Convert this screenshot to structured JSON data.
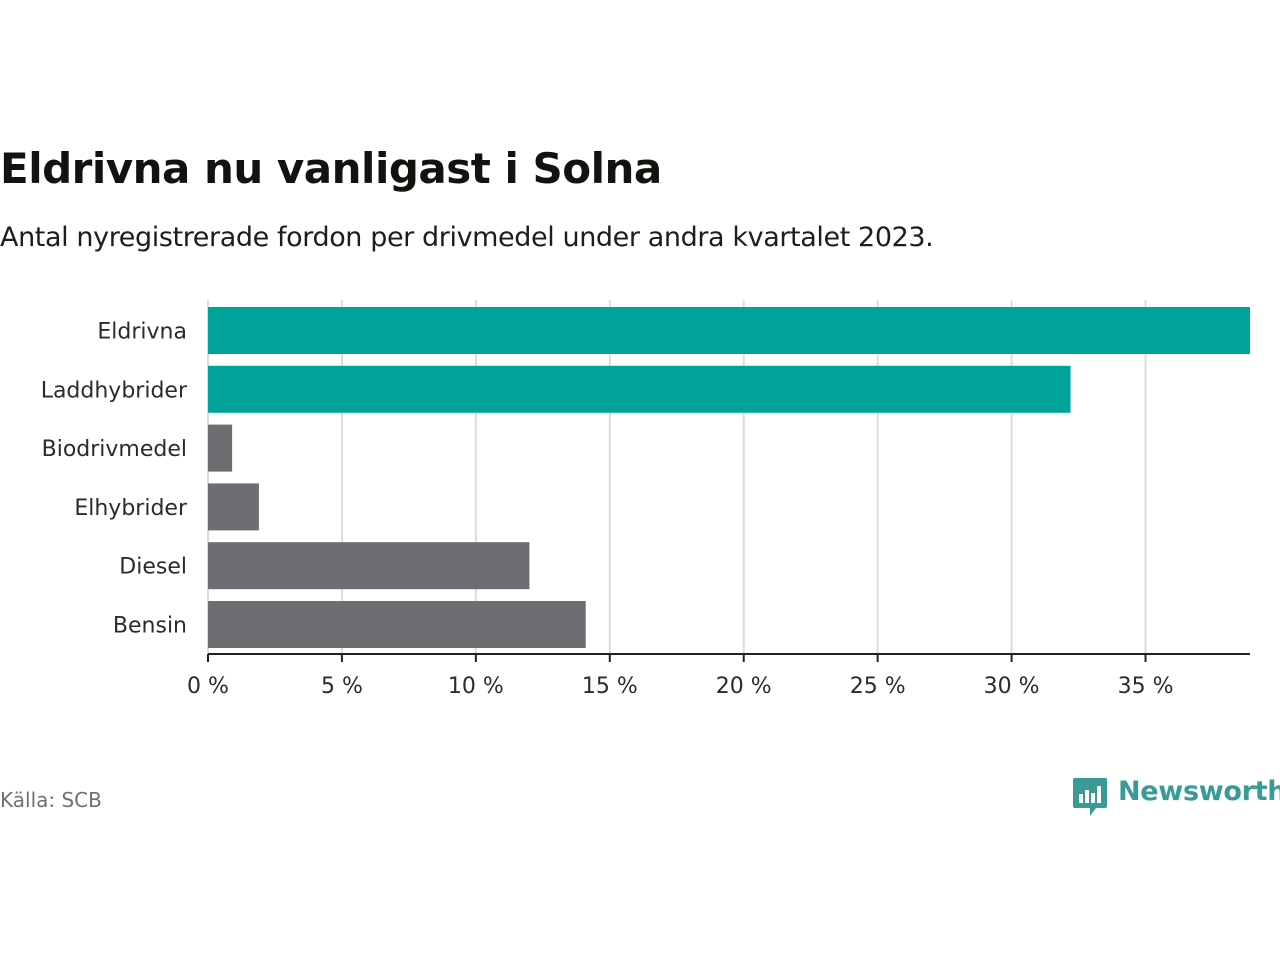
{
  "chart_data": {
    "type": "bar",
    "orientation": "horizontal",
    "title": "Eldrivna nu vanligast i Solna",
    "subtitle": "Antal nyregistrerade fordon per drivmedel under andra kvartalet 2023.",
    "categories": [
      "Eldrivna",
      "Laddhybrider",
      "Biodrivmedel",
      "Elhybrider",
      "Diesel",
      "Bensin"
    ],
    "values": [
      38.9,
      32.2,
      0.9,
      1.9,
      12.0,
      14.1
    ],
    "highlight": [
      true,
      true,
      false,
      false,
      false,
      false
    ],
    "xlim": [
      0,
      38.9
    ],
    "xticks": [
      0,
      5,
      10,
      15,
      20,
      25,
      30,
      35
    ],
    "xtick_labels": [
      "0 %",
      "5 %",
      "10 %",
      "15 %",
      "20 %",
      "25 %",
      "30 %",
      "35 %"
    ],
    "grid": true,
    "colors": {
      "highlight": "#00a39a",
      "default": "#6e6d72",
      "grid": "#dcdcdc",
      "axis": "#222222"
    }
  },
  "source": "Källa: SCB",
  "brand": "Newsworthy",
  "brand_color": "#3a9a95",
  "logo_icon": "newsworthy-bar-chart-bubble-icon"
}
